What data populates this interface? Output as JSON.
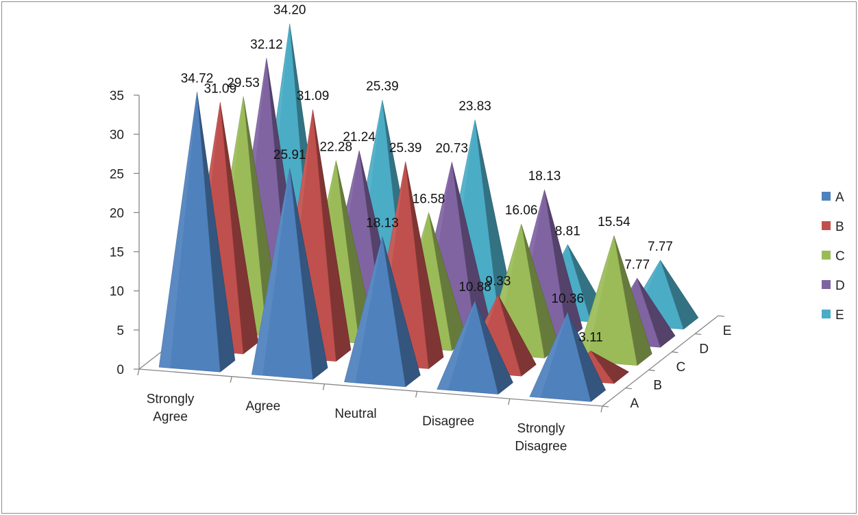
{
  "chart_data": {
    "type": "bar",
    "subtype": "3d-pyramid",
    "title": "",
    "categories": [
      "Strongly Agree",
      "Agree",
      "Neutral",
      "Disagree",
      "Strongly Disagree"
    ],
    "category_lines": [
      [
        "Strongly",
        "Agree"
      ],
      [
        "Agree"
      ],
      [
        "Neutral"
      ],
      [
        "Disagree"
      ],
      [
        "Strongly",
        "Disagree"
      ]
    ],
    "series": [
      {
        "name": "A",
        "color": "#4F81BD",
        "values": [
          34.72,
          25.91,
          18.13,
          10.88,
          10.36
        ]
      },
      {
        "name": "B",
        "color": "#C0504D",
        "values": [
          31.09,
          31.09,
          25.39,
          9.33,
          3.11
        ]
      },
      {
        "name": "C",
        "color": "#9BBB59",
        "values": [
          29.53,
          22.28,
          16.58,
          16.06,
          15.54
        ]
      },
      {
        "name": "D",
        "color": "#8064A2",
        "values": [
          32.12,
          21.24,
          20.73,
          18.13,
          7.77
        ]
      },
      {
        "name": "E",
        "color": "#4BACC6",
        "values": [
          34.2,
          25.39,
          23.83,
          8.81,
          7.77
        ]
      }
    ],
    "value_labels": [
      [
        "34.72",
        "25.91",
        "18.13",
        "10.88",
        "10.36"
      ],
      [
        "31.09",
        "31.09",
        "25.39",
        "9.33",
        "3.11"
      ],
      [
        "29.53",
        "22.28",
        "16.58",
        "16.06",
        "15.54"
      ],
      [
        "32.12",
        "21.24",
        "20.73",
        "18.13",
        "7.77"
      ],
      [
        "34.20",
        "25.39",
        "23.83",
        "8.81",
        "7.77"
      ]
    ],
    "y_ticks": [
      "0",
      "5",
      "10",
      "15",
      "20",
      "25",
      "30",
      "35"
    ],
    "ylim": [
      0,
      35
    ],
    "depth_labels": [
      "A",
      "B",
      "C",
      "D",
      "E"
    ],
    "legend_position": "right",
    "grid": false
  }
}
